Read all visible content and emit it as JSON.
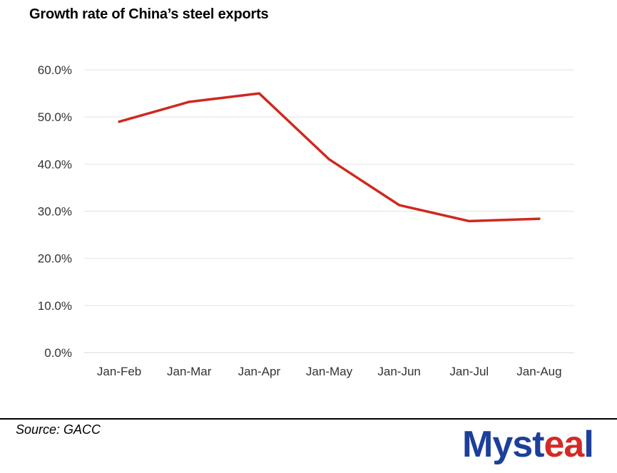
{
  "chart_data": {
    "type": "line",
    "title": "Growth rate of China’s steel exports",
    "categories": [
      "Jan-Feb",
      "Jan-Mar",
      "Jan-Apr",
      "Jan-May",
      "Jan-Jun",
      "Jan-Jul",
      "Jan-Aug"
    ],
    "series": [
      {
        "name": "Growth rate",
        "values": [
          49.0,
          53.2,
          55.0,
          41.0,
          31.3,
          27.9,
          28.4
        ],
        "color": "#d0281f"
      }
    ],
    "yticks": [
      "0.0%",
      "10.0%",
      "20.0%",
      "30.0%",
      "40.0%",
      "50.0%",
      "60.0%"
    ],
    "ylim": [
      0,
      60
    ],
    "xlabel": "",
    "ylabel": "",
    "grid": true
  },
  "footer": {
    "source": "Source: GACC"
  },
  "logo": {
    "text_main": "Myst",
    "text_accent": "ea",
    "text_end": "l",
    "main_color": "#1d3f99",
    "accent_color": "#d42a27"
  }
}
